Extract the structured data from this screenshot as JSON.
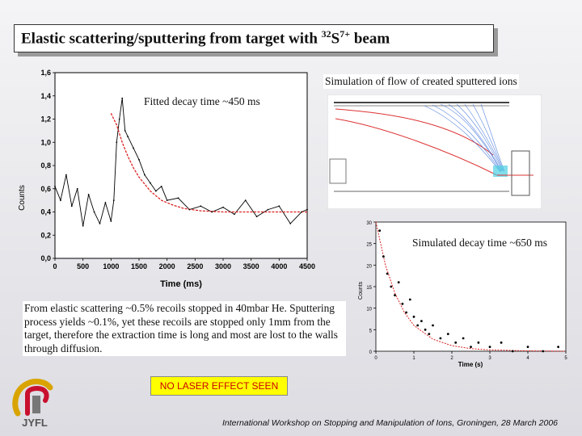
{
  "title": {
    "prefix": "Elastic scattering/sputtering from target with ",
    "isotope_mass": "32",
    "element": "S",
    "charge": "7+",
    "suffix": " beam"
  },
  "labels": {
    "fitted_decay": "Fitted decay time ~450 ms",
    "simulation_flow": "Simulation of flow of created sputtered ions",
    "simulated_decay": "Simulated decay time ~650 ms",
    "no_laser": "NO LASER EFFECT SEEN"
  },
  "body_text": "From elastic scattering ~0.5% recoils stopped in 40mbar He. Sputtering process yields ~0.1%, yet these recoils are stopped only 1mm from the target, therefore the extraction time is long and most are lost to the walls through diffusion.",
  "logo": {
    "text": "JYFL",
    "colors": [
      "#d9a400",
      "#c8102e",
      "#555555"
    ]
  },
  "footer": "International Workshop on Stopping and Manipulation of Ions, Groningen, 28 March 2006",
  "chart_data": [
    {
      "type": "line",
      "xlabel": "Time (ms)",
      "ylabel": "Counts",
      "xlim": [
        0,
        4500
      ],
      "ylim": [
        0,
        1.6
      ],
      "x_ticks": [
        "0",
        "500",
        "1000",
        "1500",
        "2000",
        "2500",
        "3000",
        "3500",
        "4000",
        "4500"
      ],
      "y_ticks": [
        "0,0",
        "0,2",
        "0,4",
        "0,6",
        "0,8",
        "1,0",
        "1,2",
        "1,4",
        "1,6"
      ],
      "series": [
        {
          "kind": "measured",
          "color": "#000000",
          "x": [
            0,
            100,
            200,
            300,
            400,
            500,
            600,
            700,
            800,
            900,
            1000,
            1050,
            1100,
            1150,
            1200,
            1250,
            1300,
            1400,
            1500,
            1600,
            1700,
            1800,
            1900,
            2000,
            2200,
            2400,
            2600,
            2800,
            3000,
            3200,
            3400,
            3600,
            3800,
            4000,
            4200,
            4400,
            4500
          ],
          "y": [
            0.62,
            0.5,
            0.72,
            0.45,
            0.6,
            0.28,
            0.55,
            0.4,
            0.3,
            0.48,
            0.32,
            0.5,
            1.0,
            1.2,
            1.38,
            1.1,
            1.05,
            0.95,
            0.85,
            0.72,
            0.65,
            0.58,
            0.62,
            0.5,
            0.52,
            0.42,
            0.45,
            0.4,
            0.44,
            0.38,
            0.5,
            0.36,
            0.42,
            0.45,
            0.3,
            0.4,
            0.42
          ]
        },
        {
          "kind": "fit",
          "color": "#dd2222",
          "x": [
            1000,
            1100,
            1200,
            1300,
            1400,
            1500,
            1700,
            1900,
            2100,
            2300,
            2600,
            3000,
            3500,
            4000,
            4500
          ],
          "y": [
            1.25,
            1.15,
            1.0,
            0.88,
            0.78,
            0.7,
            0.58,
            0.5,
            0.46,
            0.43,
            0.41,
            0.4,
            0.4,
            0.4,
            0.4
          ]
        }
      ]
    },
    {
      "type": "scatter",
      "xlabel": "Time (s)",
      "ylabel": "Counts",
      "xlim": [
        0,
        5
      ],
      "ylim": [
        0,
        30
      ],
      "x_ticks": [
        "0",
        "1",
        "2",
        "3",
        "4",
        "5"
      ],
      "y_ticks": [
        "0",
        "5",
        "10",
        "15",
        "20",
        "25",
        "30"
      ],
      "series": [
        {
          "kind": "simulated",
          "color": "#000000",
          "x": [
            0.1,
            0.2,
            0.3,
            0.4,
            0.5,
            0.6,
            0.7,
            0.8,
            0.9,
            1.0,
            1.1,
            1.2,
            1.3,
            1.4,
            1.5,
            1.7,
            1.9,
            2.1,
            2.3,
            2.5,
            2.7,
            3.0,
            3.3,
            3.6,
            4.0,
            4.4,
            4.8
          ],
          "y": [
            28,
            22,
            18,
            15,
            13,
            16,
            11,
            9,
            12,
            8,
            6,
            7,
            5,
            4,
            6,
            3,
            4,
            2,
            3,
            1,
            2,
            1,
            2,
            0,
            1,
            0,
            1
          ]
        },
        {
          "kind": "fit",
          "color": "#dd2222",
          "x": [
            0,
            0.25,
            0.5,
            0.75,
            1.0,
            1.5,
            2.0,
            2.5,
            3.0,
            4.0,
            5.0
          ],
          "y": [
            30,
            20,
            13.5,
            9,
            6,
            2.8,
            1.3,
            0.6,
            0.3,
            0.1,
            0.0
          ]
        }
      ]
    }
  ]
}
